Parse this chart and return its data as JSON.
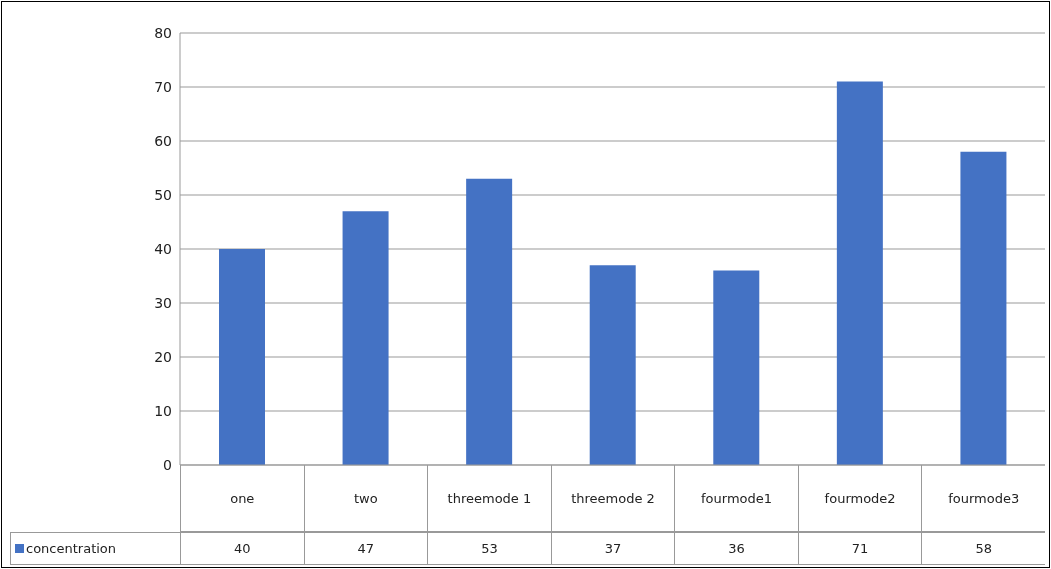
{
  "chart_data": {
    "type": "bar",
    "categories": [
      "one",
      "two",
      "threemode 1",
      "threemode 2",
      "fourmode1",
      "fourmode2",
      "fourmode3"
    ],
    "series": [
      {
        "name": "concentration",
        "color": "#4472c4",
        "values": [
          40,
          47,
          53,
          37,
          36,
          71,
          58
        ]
      }
    ],
    "ylim": [
      0,
      80
    ],
    "yticks": [
      0,
      10,
      20,
      30,
      40,
      50,
      60,
      70,
      80
    ],
    "grid": "y",
    "data_labels": true
  }
}
